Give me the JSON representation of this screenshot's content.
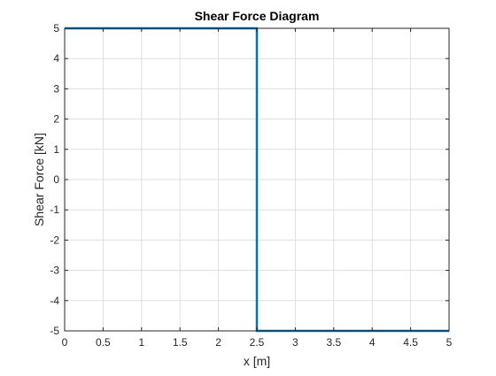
{
  "chart_data": {
    "type": "line",
    "title": "Shear Force Diagram",
    "xlabel": "x [m]",
    "ylabel": "Shear Force [kN]",
    "xlim": [
      0,
      5
    ],
    "ylim": [
      -5,
      5
    ],
    "xticks": [
      0,
      0.5,
      1,
      1.5,
      2,
      2.5,
      3,
      3.5,
      4,
      4.5,
      5
    ],
    "xtick_labels": [
      "0",
      "0.5",
      "1",
      "1.5",
      "2",
      "2.5",
      "3",
      "3.5",
      "4",
      "4.5",
      "5"
    ],
    "yticks": [
      -5,
      -4,
      -3,
      -2,
      -1,
      0,
      1,
      2,
      3,
      4,
      5
    ],
    "ytick_labels": [
      "-5",
      "-4",
      "-3",
      "-2",
      "-1",
      "0",
      "1",
      "2",
      "3",
      "4",
      "5"
    ],
    "grid": true,
    "series": [
      {
        "color": "#0072BD",
        "x": [
          0,
          2.5,
          2.5,
          5
        ],
        "y": [
          5,
          5,
          -5,
          -5
        ]
      }
    ]
  },
  "colors": {
    "grid": "#dfdfdf",
    "axis": "#262626",
    "line": "#0072BD"
  }
}
